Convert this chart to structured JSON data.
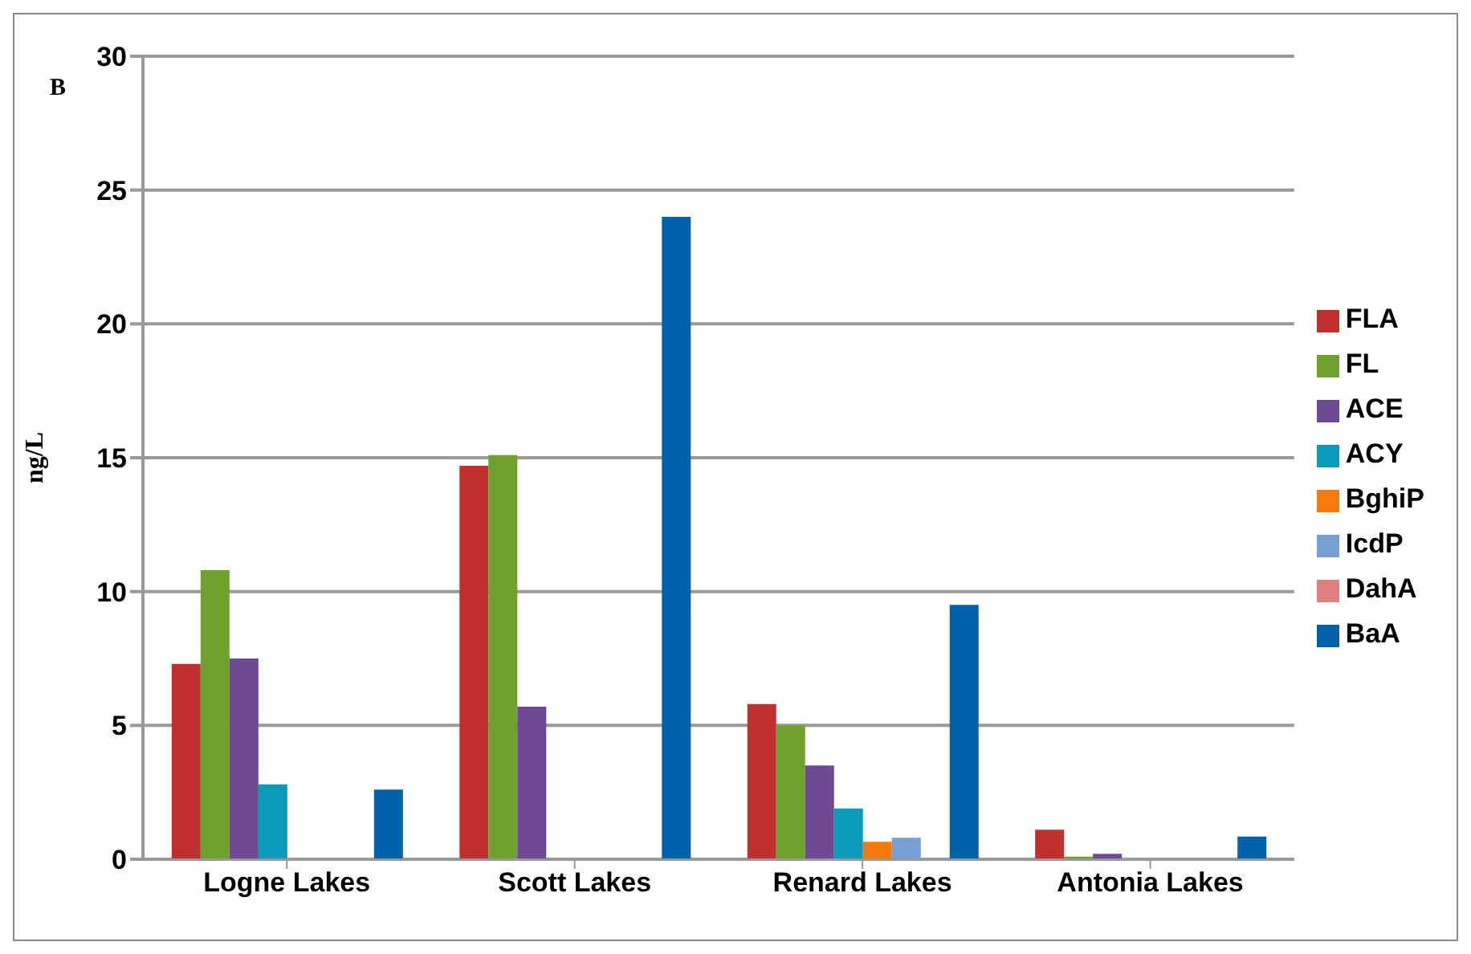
{
  "chart_data": {
    "type": "bar",
    "title": "B",
    "ylabel": "ng/L",
    "categories": [
      "Logne Lakes",
      "Scott Lakes",
      "Renard Lakes",
      "Antonia Lakes"
    ],
    "series": [
      {
        "name": "FLA",
        "color": "#c0302e",
        "values": [
          7.3,
          14.7,
          5.8,
          1.1
        ]
      },
      {
        "name": "FL",
        "color": "#6fa22c",
        "values": [
          10.8,
          15.1,
          5.0,
          0.1
        ]
      },
      {
        "name": "ACE",
        "color": "#6e4a94",
        "values": [
          7.5,
          5.7,
          3.5,
          0.2
        ]
      },
      {
        "name": "ACY",
        "color": "#0a9bbb",
        "values": [
          2.8,
          null,
          1.9,
          null
        ]
      },
      {
        "name": "BghiP",
        "color": "#f47a10",
        "values": [
          null,
          null,
          0.65,
          null
        ]
      },
      {
        "name": "IcdP",
        "color": "#789fd3",
        "values": [
          null,
          null,
          0.8,
          null
        ]
      },
      {
        "name": "DahA",
        "color": "#e07f80",
        "values": [
          null,
          null,
          null,
          null
        ]
      },
      {
        "name": "BaA",
        "color": "#0062a8",
        "values": [
          2.6,
          24,
          9.5,
          0.85
        ]
      }
    ],
    "ylim": [
      0,
      30
    ],
    "yticks": [
      0,
      5,
      10,
      15,
      20,
      25,
      30
    ],
    "grid": "y",
    "legend": "right"
  }
}
